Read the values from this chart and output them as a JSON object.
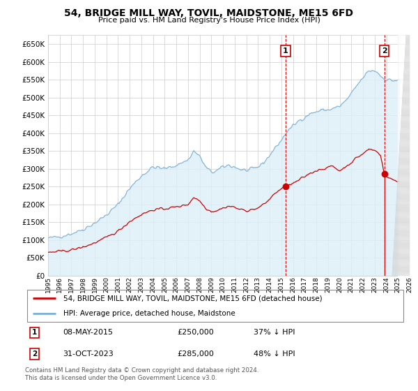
{
  "title": "54, BRIDGE MILL WAY, TOVIL, MAIDSTONE, ME15 6FD",
  "subtitle": "Price paid vs. HM Land Registry's House Price Index (HPI)",
  "legend_property": "54, BRIDGE MILL WAY, TOVIL, MAIDSTONE, ME15 6FD (detached house)",
  "legend_hpi": "HPI: Average price, detached house, Maidstone",
  "property_color": "#cc0000",
  "hpi_color": "#7ab0d4",
  "hpi_fill_color": "#ddeef7",
  "annotation1_date": "08-MAY-2015",
  "annotation1_price": "£250,000",
  "annotation1_pct": "37% ↓ HPI",
  "annotation2_date": "31-OCT-2023",
  "annotation2_price": "£285,000",
  "annotation2_pct": "48% ↓ HPI",
  "footer": "Contains HM Land Registry data © Crown copyright and database right 2024.\nThis data is licensed under the Open Government Licence v3.0.",
  "sale1_year": 2015.37,
  "sale1_value": 250000,
  "sale2_year": 2023.83,
  "sale2_value": 285000,
  "xmin": 1995,
  "xmax": 2026,
  "ymin": 0,
  "ymax": 675000,
  "yticks": [
    0,
    50000,
    100000,
    150000,
    200000,
    250000,
    300000,
    350000,
    400000,
    450000,
    500000,
    550000,
    600000,
    650000
  ],
  "xticks": [
    1995,
    1996,
    1997,
    1998,
    1999,
    2000,
    2001,
    2002,
    2003,
    2004,
    2005,
    2006,
    2007,
    2008,
    2009,
    2010,
    2011,
    2012,
    2013,
    2014,
    2015,
    2016,
    2017,
    2018,
    2019,
    2020,
    2021,
    2022,
    2023,
    2024,
    2025,
    2026
  ]
}
